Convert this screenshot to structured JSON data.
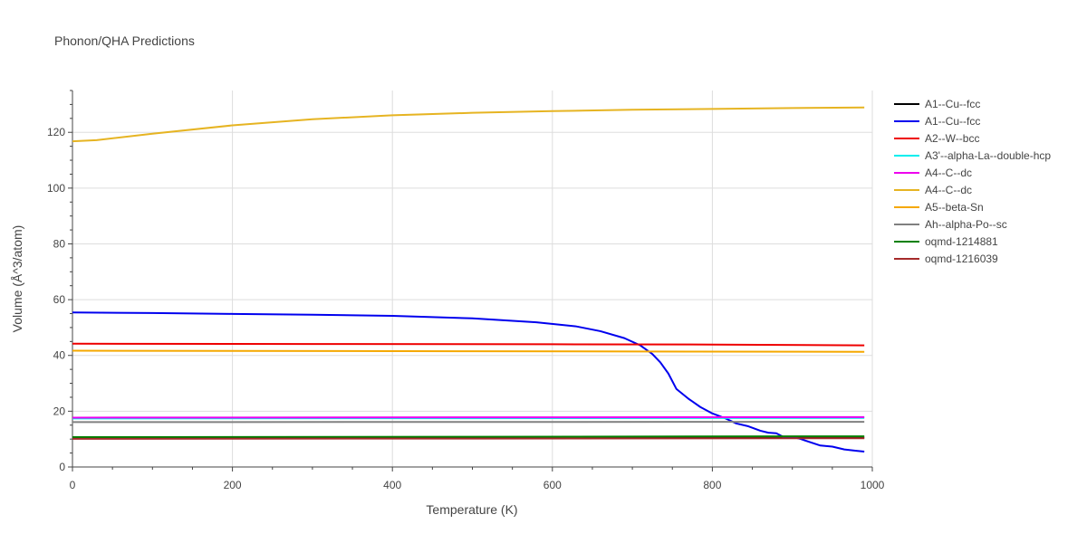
{
  "chart_data": {
    "type": "line",
    "title": "Phonon/QHA Predictions",
    "xlabel": "Temperature (K)",
    "ylabel": "Volume (Å^3/atom)",
    "xlim": [
      0,
      1000
    ],
    "ylim": [
      0,
      135
    ],
    "x_ticks": [
      0,
      200,
      400,
      600,
      800,
      1000
    ],
    "y_ticks": [
      0,
      20,
      40,
      60,
      80,
      100,
      120
    ],
    "grid": true,
    "legend_position": "right",
    "series": [
      {
        "name": "A1--Cu--fcc",
        "color": "#000000",
        "points": [
          [
            0,
            10.3
          ],
          [
            200,
            10.35
          ],
          [
            400,
            10.4
          ],
          [
            600,
            10.45
          ],
          [
            800,
            10.5
          ],
          [
            990,
            10.55
          ]
        ]
      },
      {
        "name": "A1--Cu--fcc",
        "color": "#0000ee",
        "points": [
          [
            0,
            55.4
          ],
          [
            100,
            55.2
          ],
          [
            200,
            54.9
          ],
          [
            300,
            54.6
          ],
          [
            400,
            54.2
          ],
          [
            500,
            53.3
          ],
          [
            580,
            51.9
          ],
          [
            630,
            50.4
          ],
          [
            660,
            48.7
          ],
          [
            690,
            46.2
          ],
          [
            710,
            43.6
          ],
          [
            725,
            40.5
          ],
          [
            735,
            37.5
          ],
          [
            745,
            33.5
          ],
          [
            755,
            28.0
          ],
          [
            770,
            24.5
          ],
          [
            785,
            21.5
          ],
          [
            800,
            19.2
          ],
          [
            815,
            17.6
          ],
          [
            830,
            15.6
          ],
          [
            845,
            14.6
          ],
          [
            860,
            13.0
          ],
          [
            870,
            12.3
          ],
          [
            880,
            12.1
          ],
          [
            890,
            10.6
          ],
          [
            900,
            10.8
          ],
          [
            910,
            10.1
          ],
          [
            920,
            9.1
          ],
          [
            935,
            7.7
          ],
          [
            950,
            7.3
          ],
          [
            965,
            6.3
          ],
          [
            980,
            5.8
          ],
          [
            990,
            5.5
          ]
        ]
      },
      {
        "name": "A2--W--bcc",
        "color": "#ee0000",
        "points": [
          [
            0,
            44.2
          ],
          [
            300,
            44.1
          ],
          [
            600,
            44.0
          ],
          [
            800,
            43.9
          ],
          [
            990,
            43.6
          ]
        ]
      },
      {
        "name": "A3'--alpha-La--double-hcp",
        "color": "#00eeee",
        "points": [
          [
            0,
            17.4
          ],
          [
            500,
            17.5
          ],
          [
            990,
            17.6
          ]
        ]
      },
      {
        "name": "A4--C--dc",
        "color": "#ee00ee",
        "points": [
          [
            0,
            17.7
          ],
          [
            500,
            17.8
          ],
          [
            990,
            17.9
          ]
        ]
      },
      {
        "name": "A4--C--dc",
        "color": "#e6b422",
        "points": [
          [
            0,
            116.8
          ],
          [
            30,
            117.2
          ],
          [
            100,
            119.5
          ],
          [
            200,
            122.5
          ],
          [
            300,
            124.7
          ],
          [
            400,
            126.1
          ],
          [
            500,
            127.0
          ],
          [
            600,
            127.6
          ],
          [
            700,
            128.1
          ],
          [
            800,
            128.4
          ],
          [
            900,
            128.7
          ],
          [
            990,
            128.9
          ]
        ]
      },
      {
        "name": "A5--beta-Sn",
        "color": "#f5a800",
        "points": [
          [
            0,
            41.7
          ],
          [
            500,
            41.5
          ],
          [
            990,
            41.3
          ]
        ]
      },
      {
        "name": "Ah--alpha-Po--sc",
        "color": "#808080",
        "points": [
          [
            0,
            16.1
          ],
          [
            500,
            16.15
          ],
          [
            990,
            16.2
          ]
        ]
      },
      {
        "name": "oqmd-1214881",
        "color": "#008000",
        "points": [
          [
            0,
            10.7
          ],
          [
            500,
            10.85
          ],
          [
            990,
            11.0
          ]
        ]
      },
      {
        "name": "oqmd-1216039",
        "color": "#a52a2a",
        "points": [
          [
            0,
            10.1
          ],
          [
            500,
            10.2
          ],
          [
            990,
            10.3
          ]
        ]
      }
    ]
  }
}
